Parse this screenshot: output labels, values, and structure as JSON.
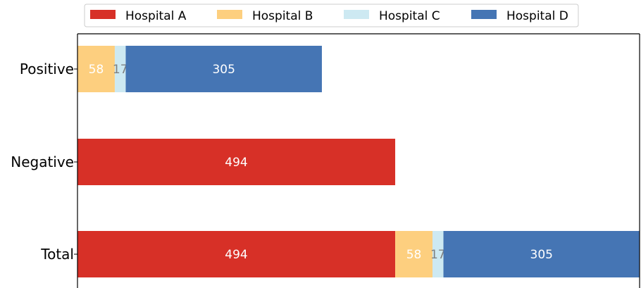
{
  "chart_data": {
    "type": "bar",
    "orientation": "horizontal",
    "stacked": true,
    "categories": [
      "Positive",
      "Negative",
      "Total"
    ],
    "series": [
      {
        "name": "Hospital A",
        "color": "#d73027",
        "values": [
          0,
          494,
          494
        ]
      },
      {
        "name": "Hospital B",
        "color": "#fdcf7f",
        "values": [
          58,
          0,
          58
        ]
      },
      {
        "name": "Hospital C",
        "color": "#cde9f2",
        "values": [
          17,
          0,
          17
        ]
      },
      {
        "name": "Hospital D",
        "color": "#4575b4",
        "values": [
          305,
          0,
          305
        ]
      }
    ],
    "data_label_colors": {
      "Hospital A": "#ffffff",
      "Hospital B": "#ffffff",
      "Hospital C": "#808080",
      "Hospital D": "#ffffff"
    },
    "title": "",
    "xlabel": "",
    "ylabel": "",
    "xlim": [
      0,
      874
    ],
    "legend_position": "top-center",
    "grid": false
  }
}
